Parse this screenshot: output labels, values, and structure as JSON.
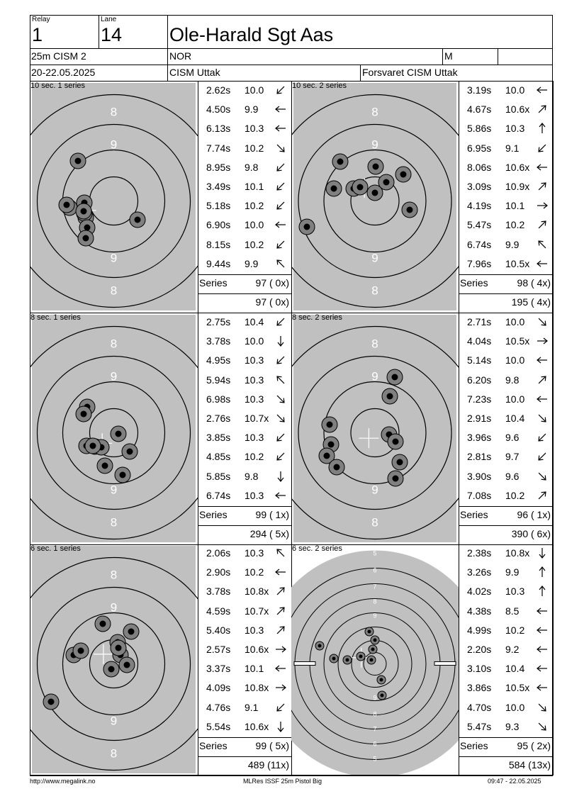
{
  "header": {
    "relay_caption": "Relay",
    "relay_value": "1",
    "lane_caption": "Lane",
    "lane_value": "14",
    "shooter_name": "Ole-Harald Sgt Aas",
    "event": "25m CISM 2",
    "nation": "NOR",
    "class": "M",
    "dates": "20-22.05.2025",
    "competition": "CISM Uttak",
    "club": "Forsvaret CISM Uttak"
  },
  "panels": [
    {
      "title": "10 sec. 1 series",
      "target_type": "rapid",
      "shots": [
        {
          "time": "2.62s",
          "score": "10.0",
          "arrow": "down-left"
        },
        {
          "time": "4.50s",
          "score": "9.9",
          "arrow": "left"
        },
        {
          "time": "6.13s",
          "score": "10.3",
          "arrow": "left"
        },
        {
          "time": "7.74s",
          "score": "10.2",
          "arrow": "down-right"
        },
        {
          "time": "8.95s",
          "score": "9.8",
          "arrow": "down-left"
        },
        {
          "time": "3.49s",
          "score": "10.1",
          "arrow": "down-left"
        },
        {
          "time": "5.18s",
          "score": "10.2",
          "arrow": "down-left"
        },
        {
          "time": "6.90s",
          "score": "10.0",
          "arrow": "left"
        },
        {
          "time": "8.15s",
          "score": "10.2",
          "arrow": "down-left"
        },
        {
          "time": "9.44s",
          "score": "9.9",
          "arrow": "up-left"
        }
      ],
      "series_label": "Series",
      "series_total": "97 ( 0x)",
      "running_total": "97 ( 0x)"
    },
    {
      "title": "10 sec. 2 series",
      "target_type": "rapid",
      "shots": [
        {
          "time": "3.19s",
          "score": "10.0",
          "arrow": "left"
        },
        {
          "time": "4.67s",
          "score": "10.6x",
          "arrow": "up-right"
        },
        {
          "time": "5.86s",
          "score": "10.3",
          "arrow": "up"
        },
        {
          "time": "6.95s",
          "score": "9.1",
          "arrow": "down-left"
        },
        {
          "time": "8.06s",
          "score": "10.6x",
          "arrow": "left"
        },
        {
          "time": "3.09s",
          "score": "10.9x",
          "arrow": "up-right"
        },
        {
          "time": "4.19s",
          "score": "10.1",
          "arrow": "right"
        },
        {
          "time": "5.47s",
          "score": "10.2",
          "arrow": "up-right"
        },
        {
          "time": "6.74s",
          "score": "9.9",
          "arrow": "up-left"
        },
        {
          "time": "7.96s",
          "score": "10.5x",
          "arrow": "left"
        }
      ],
      "series_label": "Series",
      "series_total": "98 ( 4x)",
      "running_total": "195 ( 4x)"
    },
    {
      "title": "8 sec. 1 series",
      "target_type": "rapid",
      "shots": [
        {
          "time": "2.75s",
          "score": "10.4",
          "arrow": "down-left"
        },
        {
          "time": "3.78s",
          "score": "10.0",
          "arrow": "down"
        },
        {
          "time": "4.95s",
          "score": "10.3",
          "arrow": "down-left"
        },
        {
          "time": "5.94s",
          "score": "10.3",
          "arrow": "up-left"
        },
        {
          "time": "6.98s",
          "score": "10.3",
          "arrow": "down-right"
        },
        {
          "time": "2.76s",
          "score": "10.7x",
          "arrow": "down-right"
        },
        {
          "time": "3.85s",
          "score": "10.3",
          "arrow": "down-left"
        },
        {
          "time": "4.85s",
          "score": "10.2",
          "arrow": "down-left"
        },
        {
          "time": "5.85s",
          "score": "9.8",
          "arrow": "down"
        },
        {
          "time": "6.74s",
          "score": "10.3",
          "arrow": "left"
        }
      ],
      "series_label": "Series",
      "series_total": "99 ( 1x)",
      "running_total": "294 ( 5x)"
    },
    {
      "title": "8 sec. 2 series",
      "target_type": "rapid",
      "shots": [
        {
          "time": "2.71s",
          "score": "10.0",
          "arrow": "down-right"
        },
        {
          "time": "4.04s",
          "score": "10.5x",
          "arrow": "right"
        },
        {
          "time": "5.14s",
          "score": "10.0",
          "arrow": "left"
        },
        {
          "time": "6.20s",
          "score": "9.8",
          "arrow": "up-right"
        },
        {
          "time": "7.23s",
          "score": "10.0",
          "arrow": "left"
        },
        {
          "time": "2.91s",
          "score": "10.4",
          "arrow": "down-right"
        },
        {
          "time": "3.96s",
          "score": "9.6",
          "arrow": "down-left"
        },
        {
          "time": "2.81s",
          "score": "9.7",
          "arrow": "down-left"
        },
        {
          "time": "3.90s",
          "score": "9.6",
          "arrow": "down-right"
        },
        {
          "time": "7.08s",
          "score": "10.2",
          "arrow": "up-right"
        }
      ],
      "series_label": "Series",
      "series_total": "96 ( 1x)",
      "running_total": "390 ( 6x)"
    },
    {
      "title": "6 sec. 1 series",
      "target_type": "rapid",
      "shots": [
        {
          "time": "2.06s",
          "score": "10.3",
          "arrow": "up-left"
        },
        {
          "time": "2.90s",
          "score": "10.2",
          "arrow": "left"
        },
        {
          "time": "3.78s",
          "score": "10.8x",
          "arrow": "up-right"
        },
        {
          "time": "4.59s",
          "score": "10.7x",
          "arrow": "up-right"
        },
        {
          "time": "5.40s",
          "score": "10.3",
          "arrow": "up-right"
        },
        {
          "time": "2.57s",
          "score": "10.6x",
          "arrow": "right"
        },
        {
          "time": "3.37s",
          "score": "10.1",
          "arrow": "left"
        },
        {
          "time": "4.09s",
          "score": "10.8x",
          "arrow": "right"
        },
        {
          "time": "4.76s",
          "score": "9.1",
          "arrow": "down-left"
        },
        {
          "time": "5.54s",
          "score": "10.6x",
          "arrow": "down"
        }
      ],
      "series_label": "Series",
      "series_total": "99 ( 5x)",
      "running_total": "489 (11x)"
    },
    {
      "title": "6 sec. 2 series",
      "target_type": "precision",
      "shots": [
        {
          "time": "2.38s",
          "score": "10.8x",
          "arrow": "down"
        },
        {
          "time": "3.26s",
          "score": "9.9",
          "arrow": "up"
        },
        {
          "time": "4.02s",
          "score": "10.3",
          "arrow": "up"
        },
        {
          "time": "4.38s",
          "score": "8.5",
          "arrow": "left"
        },
        {
          "time": "4.99s",
          "score": "10.2",
          "arrow": "left"
        },
        {
          "time": "2.20s",
          "score": "9.2",
          "arrow": "left"
        },
        {
          "time": "3.10s",
          "score": "10.4",
          "arrow": "left"
        },
        {
          "time": "3.86s",
          "score": "10.5x",
          "arrow": "left"
        },
        {
          "time": "4.70s",
          "score": "10.0",
          "arrow": "down-right"
        },
        {
          "time": "5.47s",
          "score": "9.3",
          "arrow": "down-right"
        }
      ],
      "series_label": "Series",
      "series_total": "95 ( 2x)",
      "running_total": "584 (13x)"
    }
  ],
  "footer": {
    "left": "http://www.megalink.no",
    "center": "MLRes ISSF 25m Pistol Big",
    "right": "09:47 - 22.05.2025"
  },
  "colors": {
    "target_bg": "#c0c0c0",
    "shot_outer": "#808080",
    "shot_inner": "#000000"
  }
}
